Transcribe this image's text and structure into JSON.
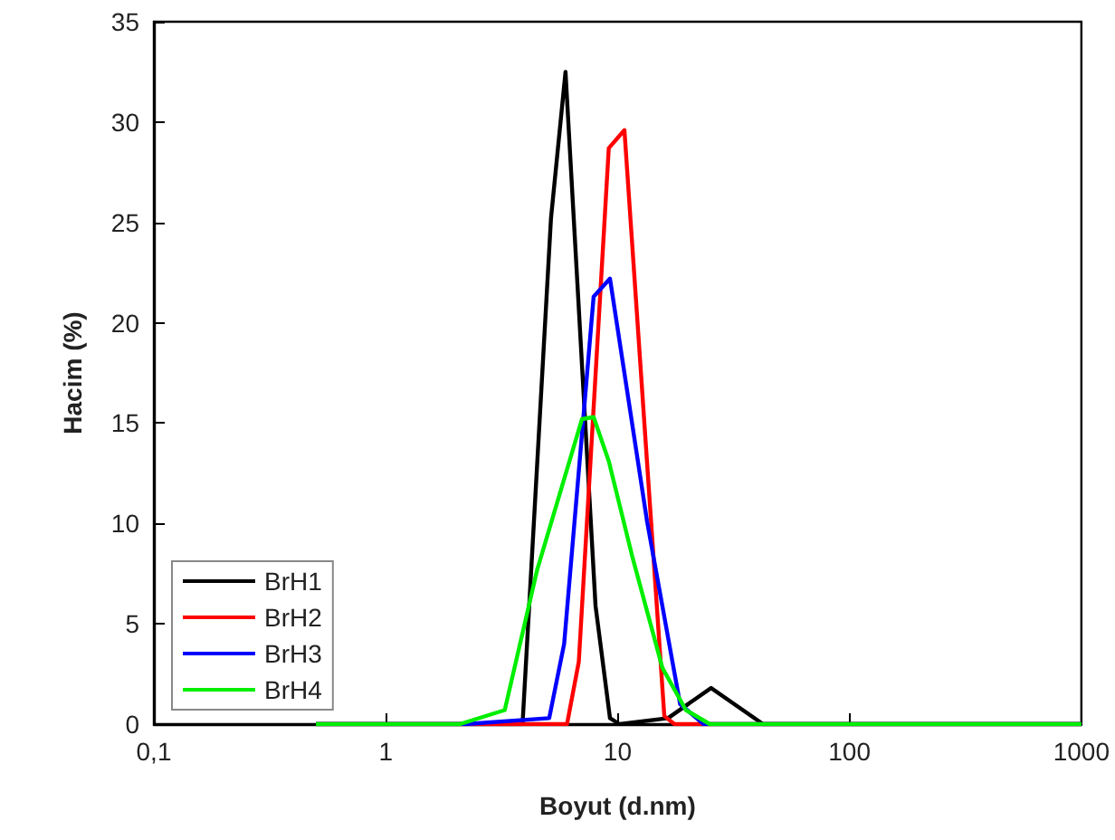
{
  "chart_data": {
    "type": "line",
    "xlabel": "Boyut (d.nm)",
    "ylabel": "Hacim (%)",
    "log": "x",
    "xlim": [
      0.1,
      1000
    ],
    "xticks": [
      {
        "value": 0.1,
        "label": "0,1"
      },
      1,
      10,
      100,
      1000
    ],
    "ylim": [
      0,
      35
    ],
    "yticks": [
      0,
      5,
      10,
      15,
      20,
      25,
      30,
      35
    ],
    "grid": false,
    "legend": "bottom left",
    "marker": "none",
    "line_style": "solid",
    "series": [
      {
        "name": "BrH1",
        "color": "#000000",
        "x": [
          0.5,
          3.89,
          5.16,
          5.96,
          8.03,
          9.27,
          10.2,
          16.5,
          25.3,
          42.4,
          1000
        ],
        "values": [
          0,
          0,
          25.2,
          32.5,
          5.9,
          0.3,
          0,
          0.3,
          1.8,
          0,
          0
        ]
      },
      {
        "name": "BrH2",
        "color": "#ff0000",
        "x": [
          0.5,
          6.05,
          6.8,
          9.16,
          10.7,
          15.9,
          17.6,
          1000
        ],
        "values": [
          0,
          0,
          3.1,
          28.7,
          29.6,
          0.4,
          0,
          0
        ]
      },
      {
        "name": "BrH3",
        "color": "#0000ff",
        "x": [
          0.5,
          2.2,
          5.07,
          5.88,
          7.88,
          9.27,
          13.4,
          18.6,
          23.5,
          1000
        ],
        "values": [
          0,
          0,
          0.3,
          4.0,
          21.3,
          22.2,
          10.1,
          1.0,
          0,
          0
        ]
      },
      {
        "name": "BrH4",
        "color": "#00ee00",
        "x": [
          0.5,
          2.09,
          3.26,
          4.5,
          7.02,
          7.88,
          9.16,
          11.6,
          15.6,
          19.7,
          25,
          1000
        ],
        "values": [
          0,
          0,
          0.7,
          7.7,
          15.2,
          15.3,
          13.1,
          8.3,
          2.8,
          0.7,
          0,
          0
        ]
      }
    ]
  }
}
